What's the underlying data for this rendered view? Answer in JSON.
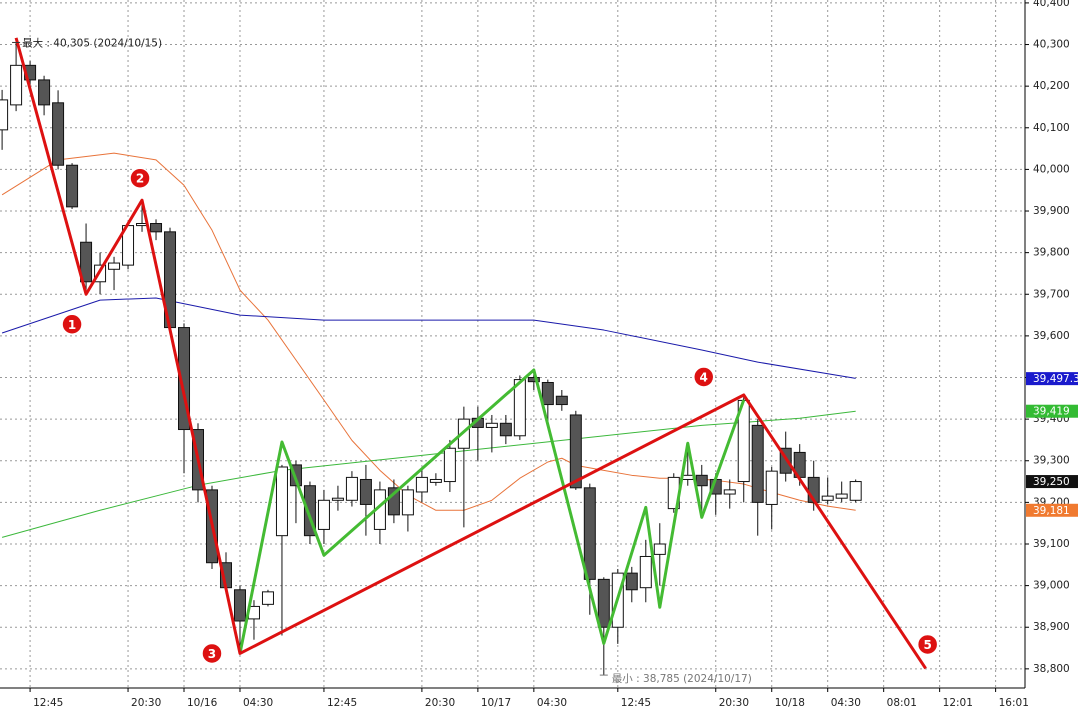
{
  "chart_data": {
    "type": "candlestick",
    "max_label": "最大 : 40,305 (2024/10/15)",
    "min_label": "最小 : 38,785 (2024/10/17)",
    "ylim": [
      38754,
      40407
    ],
    "xlim": [
      -0.15,
      73.1
    ],
    "yticks": [
      {
        "value": 38800,
        "label": "38,800"
      },
      {
        "value": 38900,
        "label": "38,900"
      },
      {
        "value": 39000,
        "label": "39,000"
      },
      {
        "value": 39100,
        "label": "39,100"
      },
      {
        "value": 39200,
        "label": "39,200"
      },
      {
        "value": 39300,
        "label": "39,300"
      },
      {
        "value": 39400,
        "label": "39,400"
      },
      {
        "value": 39500,
        "label": "39,500"
      },
      {
        "value": 39600,
        "label": "39,600"
      },
      {
        "value": 39700,
        "label": "39,700"
      },
      {
        "value": 39800,
        "label": "39,800"
      },
      {
        "value": 39900,
        "label": "39,900"
      },
      {
        "value": 40000,
        "label": "40,000"
      },
      {
        "value": 40100,
        "label": "40,100"
      },
      {
        "value": 40200,
        "label": "40,200"
      },
      {
        "value": 40300,
        "label": "40,300"
      },
      {
        "value": 40400,
        "label": "40,400"
      }
    ],
    "xticks": [
      {
        "value": 2,
        "label": "12:45"
      },
      {
        "value": 9,
        "label": "20:30"
      },
      {
        "value": 13,
        "label": "10/16"
      },
      {
        "value": 17,
        "label": "04:30"
      },
      {
        "value": 23,
        "label": "12:45"
      },
      {
        "value": 30,
        "label": "20:30"
      },
      {
        "value": 34,
        "label": "10/17"
      },
      {
        "value": 38,
        "label": "04:30"
      },
      {
        "value": 44,
        "label": "12:45"
      },
      {
        "value": 51,
        "label": "20:30"
      },
      {
        "value": 55,
        "label": "10/18"
      },
      {
        "value": 59,
        "label": "04:30"
      },
      {
        "value": 63,
        "label": "08:01"
      },
      {
        "value": 67,
        "label": "12:01"
      },
      {
        "value": 71,
        "label": "16:01"
      }
    ],
    "grid": true,
    "up_color": "#ffffff",
    "down_color": "#555555",
    "candles": {
      "open": [
        40095,
        40155,
        40250,
        40215,
        40160,
        40010,
        39825,
        39730,
        39760,
        39770,
        39865,
        39870,
        39850,
        39620,
        39375,
        39230,
        39055,
        38990,
        38920,
        38955,
        39120,
        39290,
        39240,
        39135,
        39205,
        39205,
        39255,
        39135,
        39235,
        39170,
        39225,
        39248,
        39250,
        39330,
        39402,
        39380,
        39390,
        39360,
        39500,
        39488,
        39455,
        39410,
        39235,
        39015,
        38900,
        39030,
        38995,
        39075,
        39185,
        39255,
        39265,
        39255,
        39220,
        39250,
        39385,
        39195,
        39330,
        39320,
        39260,
        39205,
        39210,
        39205
      ],
      "high": [
        40191,
        40305,
        40260,
        40225,
        40190,
        40015,
        39870,
        39800,
        39790,
        39875,
        39920,
        39880,
        39860,
        39630,
        39390,
        39240,
        39080,
        39000,
        38965,
        38990,
        39290,
        39300,
        39250,
        39230,
        39240,
        39275,
        39290,
        39250,
        39255,
        39240,
        39280,
        39270,
        39350,
        39430,
        39430,
        39410,
        39410,
        39505,
        39520,
        39495,
        39470,
        39420,
        39245,
        39020,
        39040,
        39045,
        39110,
        39150,
        39270,
        39330,
        39290,
        39270,
        39255,
        39455,
        39400,
        39285,
        39370,
        39340,
        39300,
        39260,
        39250,
        39255
      ],
      "low": [
        40047,
        40140,
        40190,
        40130,
        40000,
        39905,
        39700,
        39700,
        39710,
        39760,
        39850,
        39830,
        39610,
        39270,
        39200,
        39040,
        38980,
        38845,
        38870,
        38950,
        38880,
        39150,
        39100,
        39100,
        39180,
        39190,
        39120,
        39100,
        39150,
        39130,
        39200,
        39240,
        39225,
        39140,
        39300,
        39320,
        39340,
        39350,
        39470,
        39395,
        39420,
        39230,
        38930,
        38785,
        38860,
        38960,
        38960,
        39000,
        39175,
        39240,
        39180,
        39170,
        39185,
        39200,
        39120,
        39135,
        39250,
        39240,
        39180,
        39195,
        39200,
        39200
      ],
      "close": [
        40167,
        40250,
        40215,
        40155,
        40010,
        39910,
        39730,
        39770,
        39775,
        39865,
        39870,
        39850,
        39620,
        39375,
        39230,
        39055,
        38995,
        38915,
        38950,
        38985,
        39285,
        39240,
        39120,
        39205,
        39210,
        39260,
        39195,
        39230,
        39170,
        39230,
        39260,
        39255,
        39330,
        39400,
        39380,
        39390,
        39360,
        39495,
        39490,
        39435,
        39435,
        39235,
        39015,
        38900,
        39030,
        38990,
        39070,
        39100,
        39260,
        39265,
        39240,
        39220,
        39230,
        39445,
        39200,
        39275,
        39270,
        39260,
        39200,
        39215,
        39220,
        39250
      ]
    },
    "lines": [
      {
        "color": "#e8733a",
        "width": 1,
        "x": [
          0,
          4,
          8,
          11,
          13,
          15,
          17,
          19,
          21,
          23,
          25,
          27,
          29,
          31,
          33,
          35,
          37,
          39,
          40,
          41,
          43,
          45,
          47,
          49,
          51,
          53,
          55,
          57,
          59,
          61
        ],
        "values": [
          39939,
          40023,
          40039,
          40023,
          39962,
          39854,
          39710,
          39638,
          39542,
          39446,
          39349,
          39277,
          39217,
          39181,
          39181,
          39205,
          39258,
          39297,
          39306,
          39289,
          39277,
          39265,
          39258,
          39258,
          39253,
          39244,
          39224,
          39205,
          39191,
          39181
        ]
      },
      {
        "color": "#1a1aaa",
        "width": 1,
        "x": [
          0,
          7,
          11,
          17,
          23,
          38,
          43,
          50,
          54,
          61
        ],
        "values": [
          39607,
          39686,
          39691,
          39650,
          39638,
          39638,
          39614,
          39566,
          39537,
          39498
        ]
      },
      {
        "color": "#3cb83c",
        "width": 1,
        "x": [
          0,
          7,
          14,
          20,
          30,
          40,
          50,
          57,
          61
        ],
        "values": [
          39116,
          39181,
          39241,
          39277,
          39313,
          39349,
          39385,
          39402,
          39419
        ]
      },
      {
        "color": "#44bb33",
        "width": 3,
        "x": [
          17,
          20,
          23,
          38,
          43,
          46,
          47,
          49,
          50,
          53
        ],
        "values": [
          38837,
          39345,
          39073,
          39518,
          38861,
          39188,
          38948,
          39342,
          39164,
          39446
        ]
      },
      {
        "color": "#dd1111",
        "width": 3,
        "x": [
          1,
          6,
          10,
          17,
          53,
          66
        ],
        "values": [
          40316,
          39700,
          39926,
          38837,
          39458,
          38801
        ]
      }
    ],
    "annotations": [
      "1",
      "2",
      "3",
      "4",
      "5"
    ],
    "price_tags": [
      {
        "value": 39497.3,
        "label": "39,497.3",
        "color": "#1a1acc"
      },
      {
        "value": 39419,
        "label": "39,419",
        "color": "#33bb33"
      },
      {
        "value": 39250,
        "label": "39,250",
        "color": "#111111"
      },
      {
        "value": 39181,
        "label": "39,181",
        "color": "#f07a30"
      }
    ]
  }
}
